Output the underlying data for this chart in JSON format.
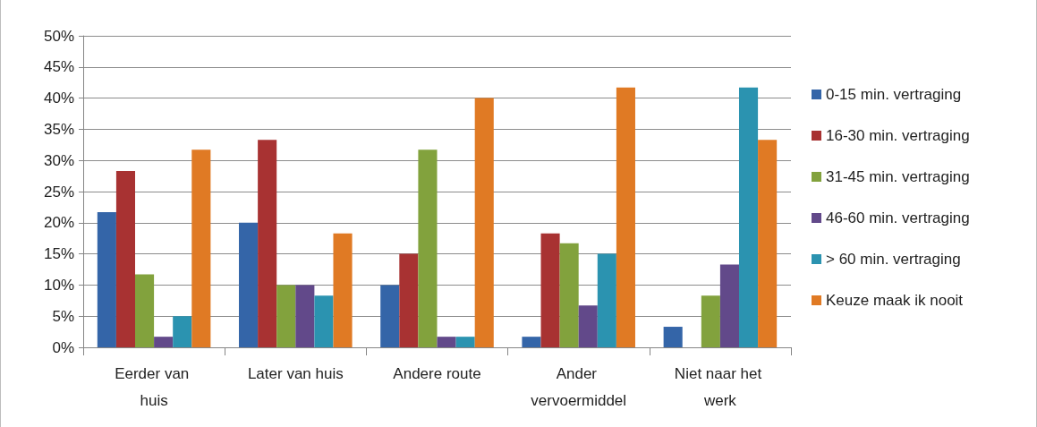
{
  "chart_data": {
    "type": "bar",
    "categories": [
      "Eerder van huis",
      "Later van huis",
      "Andere route",
      "Ander vervoermiddel",
      "Niet naar het werk"
    ],
    "series": [
      {
        "name": "0-15 min. vertraging",
        "color": "#3465a8",
        "values": [
          21.7,
          20.0,
          10.0,
          1.7,
          3.3
        ]
      },
      {
        "name": "16-30 min. vertraging",
        "color": "#a83232",
        "values": [
          28.3,
          33.3,
          15.0,
          18.3,
          0
        ]
      },
      {
        "name": "31-45 min. vertraging",
        "color": "#82a23d",
        "values": [
          11.7,
          10.0,
          31.7,
          16.7,
          8.3
        ]
      },
      {
        "name": "46-60 min. vertraging",
        "color": "#62498a",
        "values": [
          1.7,
          10.0,
          1.7,
          6.7,
          13.3
        ]
      },
      {
        "name": "> 60 min. vertraging",
        "color": "#2b93b0",
        "values": [
          5.0,
          8.3,
          1.7,
          15.0,
          41.7
        ]
      },
      {
        "name": "Keuze maak ik nooit",
        "color": "#e07a24",
        "values": [
          31.7,
          18.3,
          40.0,
          41.7,
          33.3
        ]
      }
    ],
    "ylim": [
      0,
      50
    ],
    "yticks": [
      {
        "value": 0,
        "label": "0%"
      },
      {
        "value": 5,
        "label": "5%"
      },
      {
        "value": 10,
        "label": "10%"
      },
      {
        "value": 15,
        "label": "15%"
      },
      {
        "value": 20,
        "label": "20%"
      },
      {
        "value": 25,
        "label": "25%"
      },
      {
        "value": 30,
        "label": "30%"
      },
      {
        "value": 35,
        "label": "35%"
      },
      {
        "value": 40,
        "label": "40%"
      },
      {
        "value": 45,
        "label": "45%"
      },
      {
        "value": 50,
        "label": "50%"
      }
    ],
    "grid": "y",
    "legend": "right"
  }
}
